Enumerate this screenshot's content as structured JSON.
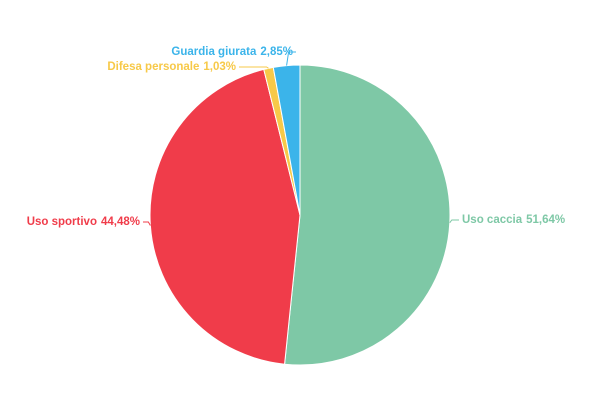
{
  "chart_data": {
    "type": "pie",
    "categories": [
      "Uso caccia",
      "Uso sportivo",
      "Difesa personale",
      "Guardia giurata"
    ],
    "values": [
      51.64,
      44.48,
      1.03,
      2.85
    ],
    "value_labels": [
      "51,64%",
      "44,48%",
      "1,03%",
      "2,85%"
    ],
    "colors": [
      "#7ec8a6",
      "#f03c4a",
      "#f7c948",
      "#3bb4ea"
    ]
  }
}
